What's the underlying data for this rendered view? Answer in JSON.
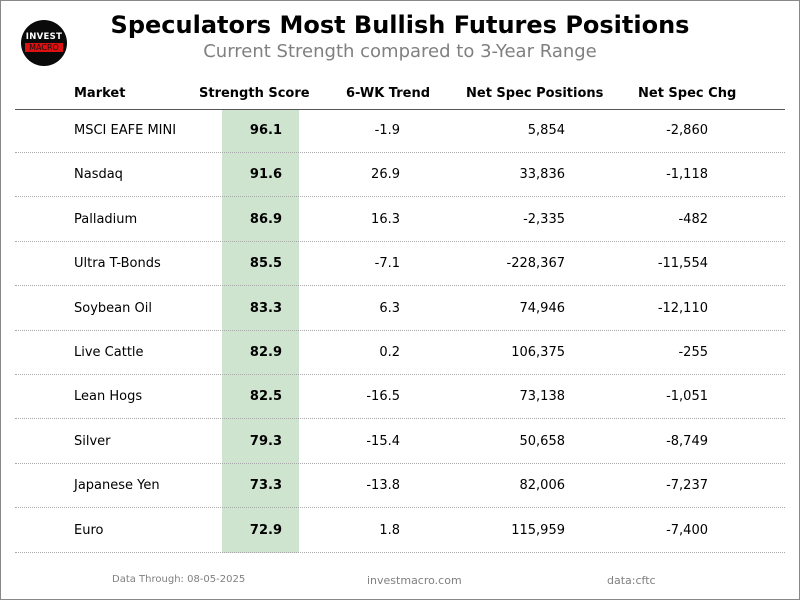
{
  "logo": {
    "line1": "INVEST",
    "line2": "MACRO"
  },
  "title": "Speculators Most Bullish Futures Positions",
  "subtitle": "Current Strength compared to 3-Year Range",
  "headers": {
    "market": "Market",
    "score": "Strength Score",
    "trend": "6-WK Trend",
    "net": "Net Spec Positions",
    "chg": "Net Spec Chg"
  },
  "chart_data": {
    "type": "table",
    "title": "Speculators Most Bullish Futures Positions",
    "subtitle": "Current Strength compared to 3-Year Range",
    "columns": [
      "Market",
      "Strength Score",
      "6-WK Trend",
      "Net Spec Positions",
      "Net Spec Chg"
    ],
    "highlight_color": "#cfe4cf",
    "rows": [
      {
        "market": "MSCI EAFE MINI",
        "score": "96.1",
        "trend": "-1.9",
        "net": "5,854",
        "chg": "-2,860"
      },
      {
        "market": "Nasdaq",
        "score": "91.6",
        "trend": "26.9",
        "net": "33,836",
        "chg": "-1,118"
      },
      {
        "market": "Palladium",
        "score": "86.9",
        "trend": "16.3",
        "net": "-2,335",
        "chg": "-482"
      },
      {
        "market": "Ultra T-Bonds",
        "score": "85.5",
        "trend": "-7.1",
        "net": "-228,367",
        "chg": "-11,554"
      },
      {
        "market": "Soybean Oil",
        "score": "83.3",
        "trend": "6.3",
        "net": "74,946",
        "chg": "-12,110"
      },
      {
        "market": "Live Cattle",
        "score": "82.9",
        "trend": "0.2",
        "net": "106,375",
        "chg": "-255"
      },
      {
        "market": "Lean Hogs",
        "score": "82.5",
        "trend": "-16.5",
        "net": "73,138",
        "chg": "-1,051"
      },
      {
        "market": "Silver",
        "score": "79.3",
        "trend": "-15.4",
        "net": "50,658",
        "chg": "-8,749"
      },
      {
        "market": "Japanese Yen",
        "score": "73.3",
        "trend": "-13.8",
        "net": "82,006",
        "chg": "-7,237"
      },
      {
        "market": "Euro",
        "score": "72.9",
        "trend": "1.8",
        "net": "115,959",
        "chg": "-7,400"
      }
    ]
  },
  "footer": {
    "date": "Data Through: 08-05-2025",
    "site": "investmacro.com",
    "source": "data:cftc"
  }
}
